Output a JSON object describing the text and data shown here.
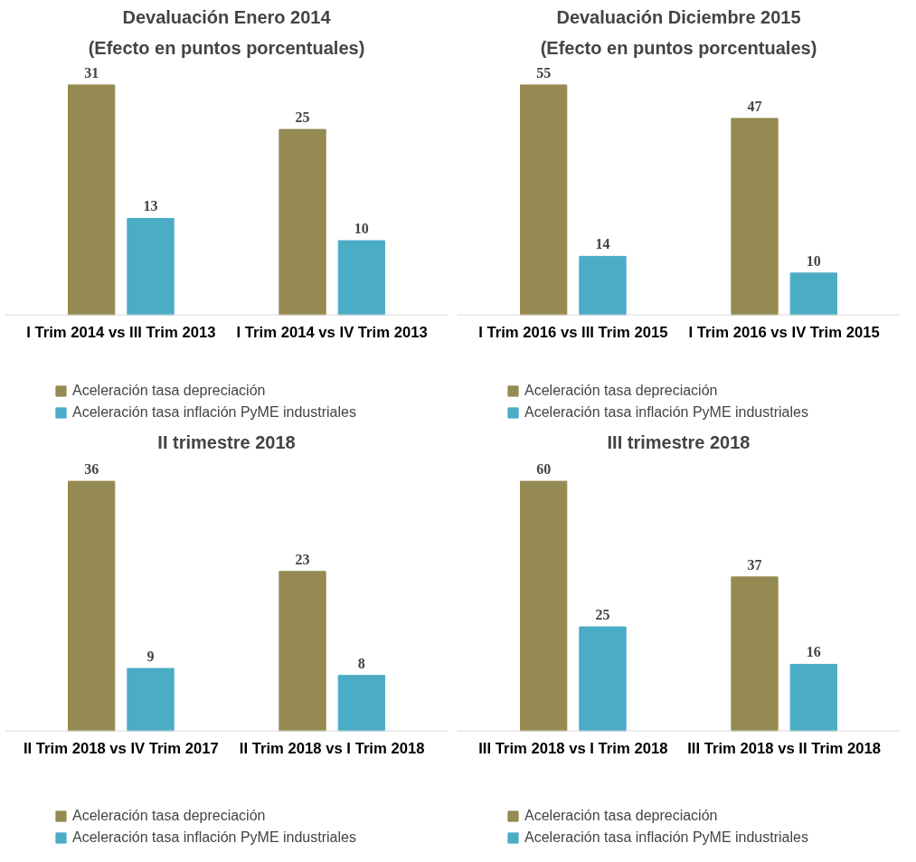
{
  "chart_data": [
    {
      "type": "bar",
      "title": "Devaluación Enero 2014",
      "subtitle": "(Efecto en puntos porcentuales)",
      "categories": [
        "I Trim 2014 vs III Trim 2013",
        "I Trim 2014 vs IV Trim 2013"
      ],
      "series": [
        {
          "name": "Aceleración tasa depreciación",
          "color": "#958b52",
          "values": [
            31,
            25
          ]
        },
        {
          "name": "Aceleración tasa inflación PyME industriales",
          "color": "#4bacc6",
          "values": [
            13,
            10
          ]
        }
      ],
      "data_labels": true,
      "legend": "bottom",
      "grid": false
    },
    {
      "type": "bar",
      "title": "Devaluación Diciembre 2015",
      "subtitle": "(Efecto en puntos porcentuales)",
      "categories": [
        "I Trim 2016 vs III Trim 2015",
        "I Trim 2016 vs IV Trim 2015"
      ],
      "series": [
        {
          "name": "Aceleración tasa depreciación",
          "color": "#958b52",
          "values": [
            55,
            47
          ]
        },
        {
          "name": "Aceleración tasa inflación PyME industriales",
          "color": "#4bacc6",
          "values": [
            14,
            10
          ]
        }
      ],
      "data_labels": true,
      "legend": "bottom",
      "grid": false
    },
    {
      "type": "bar",
      "title": "II trimestre 2018",
      "categories": [
        "II Trim 2018 vs IV Trim 2017",
        "II Trim 2018 vs I Trim 2018"
      ],
      "series": [
        {
          "name": "Aceleración tasa depreciación",
          "color": "#958b52",
          "values": [
            36,
            23
          ]
        },
        {
          "name": "Aceleración tasa inflación PyME industriales",
          "color": "#4bacc6",
          "values": [
            9,
            8
          ]
        }
      ],
      "data_labels": true,
      "legend": "bottom",
      "grid": false
    },
    {
      "type": "bar",
      "title": "III trimestre 2018",
      "categories": [
        "III Trim 2018 vs I Trim 2018",
        "III Trim 2018 vs II Trim 2018"
      ],
      "series": [
        {
          "name": "Aceleración tasa depreciación",
          "color": "#958b52",
          "values": [
            60,
            37
          ]
        },
        {
          "name": "Aceleración tasa inflación PyME industriales",
          "color": "#4bacc6",
          "values": [
            25,
            16
          ]
        }
      ],
      "data_labels": true,
      "legend": "bottom",
      "grid": false
    }
  ]
}
